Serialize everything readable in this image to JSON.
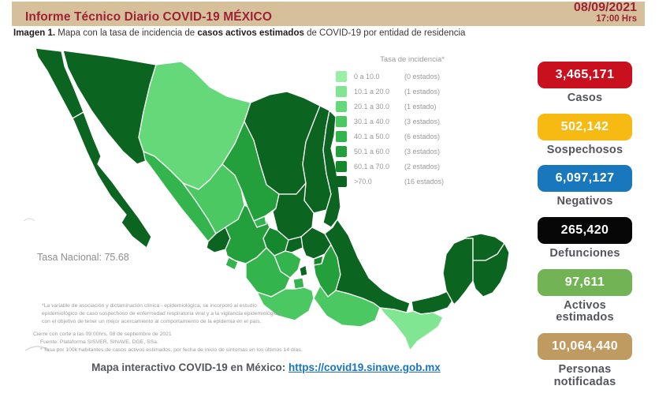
{
  "header": {
    "title": "Informe Técnico Diario COVID-19 MÉXICO",
    "date": "08/09/2021",
    "time": "17:00 Hrs"
  },
  "subtitle": {
    "prefix": "Imagen 1.",
    "text_before": " Mapa con la tasa de incidencia de ",
    "bold": "casos activos estimados",
    "text_after": " de COVID-19 por entidad de residencia"
  },
  "map": {
    "national_rate_label": "Tasa Nacional: 75.68",
    "legend": {
      "title": "Tasa de incidencia*",
      "items": [
        {
          "range": "0    a  10.0",
          "count": "(0 estados)",
          "color": "#98efa5"
        },
        {
          "range": "10.1 a  20.0",
          "count": "(1 estados)",
          "color": "#80e691"
        },
        {
          "range": "20.1 a  30.0",
          "count": "(1 estado)",
          "color": "#65d87a"
        },
        {
          "range": "30.1 a  40.0",
          "count": "(3 estados)",
          "color": "#4bc862"
        },
        {
          "range": "40.1 a  50.0",
          "count": "(6 estados)",
          "color": "#33b44d"
        },
        {
          "range": "50.1 a  60.0",
          "count": "(3 estados)",
          "color": "#23a03c"
        },
        {
          "range": "60.1 a  70.0",
          "count": "(2 estados)",
          "color": "#15872c"
        },
        {
          "range": ">70.0",
          "count": "(16 estados)",
          "color": "#0b641f"
        }
      ]
    },
    "footnote1_lines": [
      "*La variable de asociación y dictaminación clínica - epidemiológica, se incorporó al estudio",
      "epidemiológico de caso sospechoso de enfermedad respiratoria viral y a la vigilancia epidemiológica,",
      "con el objetivo de tener un mejor acercamiento al comportamiento de la epidemia en el país."
    ],
    "footnote2_lines": [
      "Cierre con corte a las 09:00hrs, 08 de septiembre de 2021",
      "Fuente: Plataforma SISVER, SINAVE, DGE, SSa.",
      "* Tasa por 100k habitantes de casos activos estimados, por fecha de inicio de síntomas en los últimos 14 días."
    ],
    "states": [
      {
        "name": "sonora",
        "band": 8
      },
      {
        "name": "chihuahua",
        "band": 3
      },
      {
        "name": "coahuila",
        "band": 8
      },
      {
        "name": "nuevo-leon",
        "band": 8
      },
      {
        "name": "tamaulipas",
        "band": 8
      },
      {
        "name": "baja-california",
        "band": 8
      },
      {
        "name": "baja-california-sur",
        "band": 8
      },
      {
        "name": "sinaloa",
        "band": 5
      },
      {
        "name": "durango",
        "band": 4
      },
      {
        "name": "zacatecas",
        "band": 6
      },
      {
        "name": "san-luis-potosi",
        "band": 8
      },
      {
        "name": "nayarit",
        "band": 8
      },
      {
        "name": "jalisco",
        "band": 6
      },
      {
        "name": "guanajuato",
        "band": 7
      },
      {
        "name": "hidalgo",
        "band": 8
      },
      {
        "name": "mexico",
        "band": 5
      },
      {
        "name": "puebla",
        "band": 6
      },
      {
        "name": "michoacan",
        "band": 5
      },
      {
        "name": "guerrero",
        "band": 4
      },
      {
        "name": "veracruz",
        "band": 8
      },
      {
        "name": "oaxaca",
        "band": 4
      },
      {
        "name": "tabasco",
        "band": 8
      },
      {
        "name": "chiapas",
        "band": 2
      },
      {
        "name": "campeche",
        "band": 8
      },
      {
        "name": "yucatan",
        "band": 8
      },
      {
        "name": "quintana-roo",
        "band": 8
      },
      {
        "name": "aguascalientes",
        "band": 5
      },
      {
        "name": "queretaro",
        "band": 8
      },
      {
        "name": "cdmx",
        "band": 8
      },
      {
        "name": "tlaxcala",
        "band": 7
      },
      {
        "name": "morelos",
        "band": 5
      },
      {
        "name": "colima",
        "band": 5
      }
    ]
  },
  "stats": [
    {
      "id": "casos",
      "value": "3,465,171",
      "label": "Casos",
      "color": "#c8101e"
    },
    {
      "id": "sospechosos",
      "value": "502,142",
      "label": "Sospechosos",
      "color": "#f7ba12"
    },
    {
      "id": "negativos",
      "value": "6,097,127",
      "label": "Negativos",
      "color": "#1877bd"
    },
    {
      "id": "defunciones",
      "value": "265,420",
      "label": "Defunciones",
      "color": "#070707"
    },
    {
      "id": "activos-estimados",
      "value": "97,611",
      "label": "Activos estimados",
      "color": "#72b355"
    },
    {
      "id": "personas-notificadas",
      "value": "10,064,440",
      "label": "Personas notificadas",
      "color": "#bf9a61"
    }
  ],
  "footer": {
    "label": "Mapa interactivo COVID-19 en México:",
    "link": "https://covid19.sinave.gob.mx"
  },
  "chart_data": {
    "type": "choropleth_map",
    "title": "Tasa de incidencia*",
    "region": "México por entidad de residencia",
    "legend_position": "top-right",
    "legend_bands": [
      {
        "range_low": 0,
        "range_high": 10.0,
        "states": 0
      },
      {
        "range_low": 10.1,
        "range_high": 20.0,
        "states": 1
      },
      {
        "range_low": 20.1,
        "range_high": 30.0,
        "states": 1
      },
      {
        "range_low": 30.1,
        "range_high": 40.0,
        "states": 3
      },
      {
        "range_low": 40.1,
        "range_high": 50.0,
        "states": 6
      },
      {
        "range_low": 50.1,
        "range_high": 60.0,
        "states": 3
      },
      {
        "range_low": 60.1,
        "range_high": 70.0,
        "states": 2
      },
      {
        "range_low": 70.0,
        "range_high": null,
        "states": 16
      }
    ],
    "national_rate": 75.68,
    "summary_stats": {
      "casos": 3465171,
      "sospechosos": 502142,
      "negativos": 6097127,
      "defunciones": 265420,
      "activos_estimados": 97611,
      "personas_notificadas": 10064440
    }
  }
}
